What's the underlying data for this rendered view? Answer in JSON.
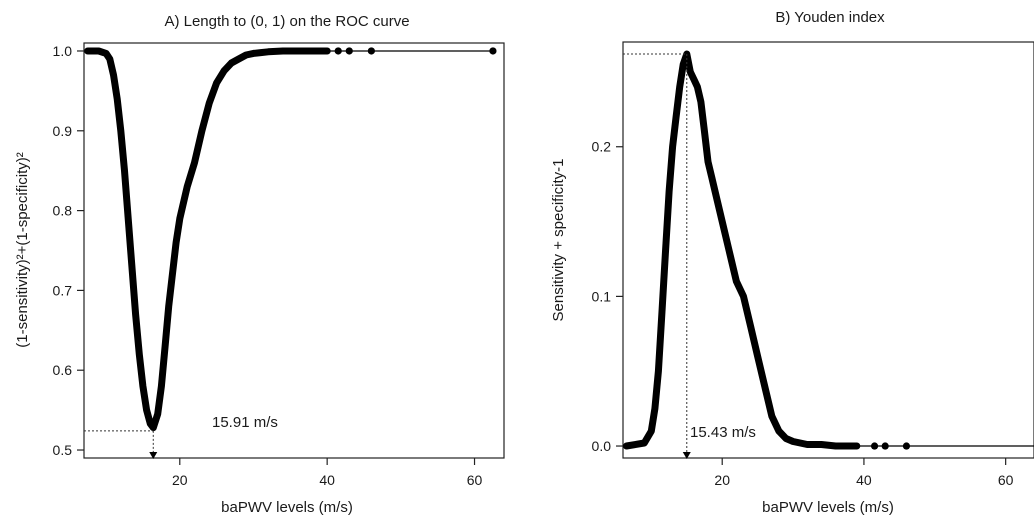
{
  "chart_data": [
    {
      "type": "line",
      "title": "A) Length to (0, 1) on the ROC curve",
      "xlabel": "baPWV levels (m/s)",
      "ylabel": "(1-sensitivity)²+(1-specificity)²",
      "xlim": [
        7,
        64
      ],
      "ylim": [
        0.49,
        1.01
      ],
      "xticks": [
        20,
        40,
        60
      ],
      "yticks": [
        0.5,
        0.6,
        0.7,
        0.8,
        0.9,
        1.0
      ],
      "ytick_labels": [
        "0.5",
        "0.6",
        "0.7",
        "0.8",
        "0.9",
        "1.0"
      ],
      "series": [
        {
          "x": [
            7.5,
            9,
            10,
            10.5,
            11,
            11.5,
            12,
            12.5,
            13,
            13.5,
            14,
            14.5,
            15,
            15.5,
            16,
            16.4,
            17,
            17.5,
            18,
            18.5,
            19,
            19.5,
            20,
            21,
            22,
            23,
            24,
            25,
            26,
            27,
            28,
            29,
            30,
            31,
            32,
            34,
            36,
            38,
            40
          ],
          "y": [
            1.0,
            1.0,
            0.997,
            0.99,
            0.97,
            0.94,
            0.9,
            0.85,
            0.79,
            0.73,
            0.67,
            0.62,
            0.58,
            0.55,
            0.533,
            0.528,
            0.545,
            0.58,
            0.63,
            0.68,
            0.72,
            0.76,
            0.79,
            0.83,
            0.86,
            0.9,
            0.935,
            0.96,
            0.975,
            0.985,
            0.99,
            0.995,
            0.997,
            0.998,
            0.999,
            1.0,
            1.0,
            1.0,
            1.0
          ]
        }
      ],
      "scatter_points": [
        {
          "x": 41.5,
          "y": 1.0
        },
        {
          "x": 43,
          "y": 1.0
        },
        {
          "x": 46,
          "y": 1.0
        },
        {
          "x": 62.5,
          "y": 1.0
        }
      ],
      "tail": {
        "x": [
          40,
          62.5
        ],
        "y": [
          1.0,
          1.0
        ]
      },
      "cutoff": {
        "x": 16.4,
        "y": 0.524,
        "label": "15.91 m/s"
      },
      "grid": false
    },
    {
      "type": "line",
      "title": "B) Youden index",
      "xlabel": "baPWV levels (m/s)",
      "ylabel": "Sensitivity + specificity-1",
      "xlim": [
        6,
        64
      ],
      "ylim": [
        -0.008,
        0.27
      ],
      "xticks": [
        20,
        40,
        60
      ],
      "yticks": [
        0.0,
        0.1,
        0.2
      ],
      "ytick_labels": [
        "0.0",
        "0.1",
        "0.2"
      ],
      "series": [
        {
          "x": [
            6.5,
            9,
            10,
            10.5,
            11,
            11.5,
            12,
            12.5,
            13,
            13.5,
            14,
            14.5,
            15,
            15.5,
            16,
            16.5,
            17,
            17.5,
            18,
            18.5,
            19,
            20,
            21,
            22,
            23,
            24,
            25,
            26,
            27,
            28,
            29,
            30,
            31,
            32,
            34,
            36,
            38,
            39
          ],
          "y": [
            0.0,
            0.002,
            0.01,
            0.025,
            0.05,
            0.09,
            0.13,
            0.17,
            0.2,
            0.22,
            0.24,
            0.255,
            0.262,
            0.25,
            0.245,
            0.24,
            0.23,
            0.21,
            0.19,
            0.18,
            0.17,
            0.15,
            0.13,
            0.11,
            0.1,
            0.08,
            0.06,
            0.04,
            0.02,
            0.01,
            0.005,
            0.003,
            0.002,
            0.001,
            0.001,
            0.0,
            0.0,
            0.0
          ]
        }
      ],
      "scatter_points": [
        {
          "x": 41.5,
          "y": 0.0
        },
        {
          "x": 43,
          "y": 0.0
        },
        {
          "x": 46,
          "y": 0.0
        }
      ],
      "tail": {
        "x": [
          39,
          64
        ],
        "y": [
          0.0,
          0.0
        ]
      },
      "cutoff": {
        "x": 15,
        "y": 0.262,
        "label": "15.43 m/s"
      },
      "grid": false
    }
  ]
}
